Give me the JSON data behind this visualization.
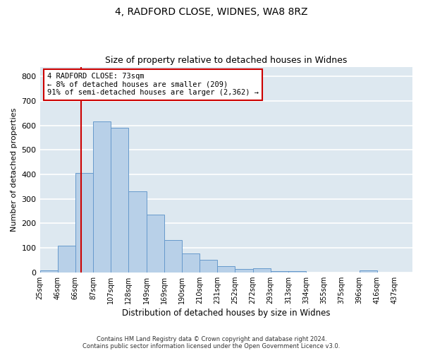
{
  "title1": "4, RADFORD CLOSE, WIDNES, WA8 8RZ",
  "title2": "Size of property relative to detached houses in Widnes",
  "xlabel": "Distribution of detached houses by size in Widnes",
  "ylabel": "Number of detached properties",
  "categories": [
    "25sqm",
    "46sqm",
    "66sqm",
    "87sqm",
    "107sqm",
    "128sqm",
    "149sqm",
    "169sqm",
    "190sqm",
    "210sqm",
    "231sqm",
    "252sqm",
    "272sqm",
    "293sqm",
    "313sqm",
    "334sqm",
    "355sqm",
    "375sqm",
    "396sqm",
    "416sqm",
    "437sqm"
  ],
  "values": [
    8,
    108,
    405,
    617,
    592,
    330,
    237,
    133,
    78,
    52,
    26,
    13,
    16,
    4,
    4,
    0,
    0,
    0,
    9,
    0,
    0
  ],
  "bar_color": "#b8d0e8",
  "bar_edge_color": "#6699cc",
  "annotation_line1": "4 RADFORD CLOSE: 73sqm",
  "annotation_line2": "← 8% of detached houses are smaller (209)",
  "annotation_line3": "91% of semi-detached houses are larger (2,362) →",
  "annotation_box_color": "#ffffff",
  "annotation_box_edge_color": "#cc0000",
  "vline_color": "#cc0000",
  "vline_x_index": 2,
  "ylim": [
    0,
    840
  ],
  "yticks": [
    0,
    100,
    200,
    300,
    400,
    500,
    600,
    700,
    800
  ],
  "background_color": "#dde8f0",
  "grid_color": "#ffffff",
  "fig_bg_color": "#ffffff",
  "footer1": "Contains HM Land Registry data © Crown copyright and database right 2024.",
  "footer2": "Contains public sector information licensed under the Open Government Licence v3.0."
}
